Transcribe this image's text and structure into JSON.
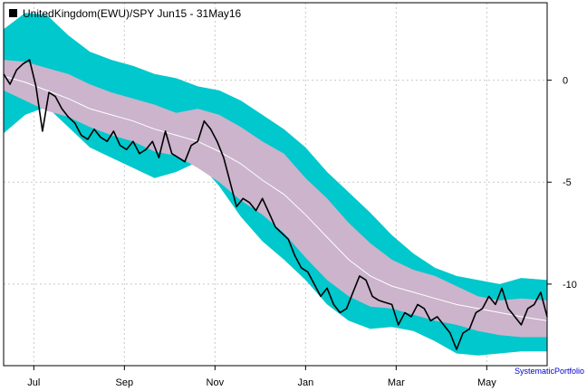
{
  "chart_data": {
    "type": "line",
    "title": "UnitedKingdom(EWU)/SPY Jun15 - 31May16",
    "xlabel": "",
    "ylabel": "",
    "grid": true,
    "legend_position": "top-left",
    "credit": "SystematicPortfolio",
    "ylim": [
      -14,
      3.8
    ],
    "y_ticks": [
      0,
      -5,
      -10
    ],
    "x_ticks": [
      "Jul",
      "Sep",
      "Nov",
      "Jan",
      "Mar",
      "May"
    ],
    "x_tick_index": [
      14,
      56,
      98,
      140,
      182,
      224
    ],
    "n_points": 253,
    "colors": {
      "outer_band": "#00c8cc",
      "inner_band": "#cbb4cc",
      "mid_line": "#ffffff",
      "price_line": "#000000",
      "grid": "#c8c8c8"
    },
    "series": [
      {
        "name": "UnitedKingdom(EWU)/SPY",
        "points": [
          [
            0,
            0.3
          ],
          [
            3,
            -0.2
          ],
          [
            6,
            0.5
          ],
          [
            9,
            0.8
          ],
          [
            12,
            1.0
          ],
          [
            15,
            -0.3
          ],
          [
            18,
            -2.5
          ],
          [
            21,
            -0.6
          ],
          [
            24,
            -0.8
          ],
          [
            27,
            -1.4
          ],
          [
            30,
            -1.8
          ],
          [
            33,
            -2.1
          ],
          [
            36,
            -2.7
          ],
          [
            39,
            -2.9
          ],
          [
            42,
            -2.4
          ],
          [
            45,
            -2.8
          ],
          [
            48,
            -3.0
          ],
          [
            51,
            -2.5
          ],
          [
            54,
            -3.2
          ],
          [
            57,
            -3.4
          ],
          [
            60,
            -3.0
          ],
          [
            63,
            -3.6
          ],
          [
            66,
            -3.4
          ],
          [
            69,
            -3.0
          ],
          [
            72,
            -3.8
          ],
          [
            75,
            -2.5
          ],
          [
            78,
            -3.6
          ],
          [
            81,
            -3.8
          ],
          [
            84,
            -4.0
          ],
          [
            87,
            -3.2
          ],
          [
            90,
            -3.0
          ],
          [
            93,
            -2.0
          ],
          [
            96,
            -2.4
          ],
          [
            99,
            -3.0
          ],
          [
            102,
            -3.8
          ],
          [
            105,
            -5.0
          ],
          [
            108,
            -6.2
          ],
          [
            111,
            -5.8
          ],
          [
            114,
            -6.0
          ],
          [
            117,
            -6.4
          ],
          [
            120,
            -5.8
          ],
          [
            123,
            -6.5
          ],
          [
            126,
            -7.2
          ],
          [
            129,
            -7.5
          ],
          [
            132,
            -7.8
          ],
          [
            135,
            -8.6
          ],
          [
            138,
            -9.2
          ],
          [
            141,
            -9.4
          ],
          [
            144,
            -10.0
          ],
          [
            147,
            -10.6
          ],
          [
            150,
            -10.2
          ],
          [
            153,
            -11.0
          ],
          [
            156,
            -11.4
          ],
          [
            159,
            -11.2
          ],
          [
            162,
            -10.4
          ],
          [
            165,
            -9.6
          ],
          [
            168,
            -9.8
          ],
          [
            171,
            -10.6
          ],
          [
            174,
            -10.8
          ],
          [
            177,
            -10.9
          ],
          [
            180,
            -11.0
          ],
          [
            183,
            -12.0
          ],
          [
            186,
            -11.4
          ],
          [
            189,
            -11.6
          ],
          [
            192,
            -11.0
          ],
          [
            195,
            -11.2
          ],
          [
            198,
            -11.8
          ],
          [
            201,
            -11.6
          ],
          [
            204,
            -12.0
          ],
          [
            207,
            -12.4
          ],
          [
            210,
            -13.2
          ],
          [
            213,
            -12.4
          ],
          [
            216,
            -12.2
          ],
          [
            219,
            -11.4
          ],
          [
            222,
            -11.2
          ],
          [
            225,
            -10.6
          ],
          [
            228,
            -11.0
          ],
          [
            231,
            -10.2
          ],
          [
            234,
            -11.2
          ],
          [
            237,
            -11.6
          ],
          [
            240,
            -12.0
          ],
          [
            243,
            -11.2
          ],
          [
            246,
            -11.0
          ],
          [
            249,
            -10.4
          ],
          [
            252,
            -11.6
          ]
        ]
      },
      {
        "name": "midline",
        "points": [
          [
            0,
            0.2
          ],
          [
            10,
            -0.1
          ],
          [
            20,
            -0.5
          ],
          [
            30,
            -0.9
          ],
          [
            40,
            -1.4
          ],
          [
            50,
            -1.7
          ],
          [
            60,
            -2.0
          ],
          [
            70,
            -2.4
          ],
          [
            80,
            -2.7
          ],
          [
            90,
            -3.0
          ],
          [
            100,
            -3.5
          ],
          [
            110,
            -4.1
          ],
          [
            120,
            -4.9
          ],
          [
            130,
            -5.6
          ],
          [
            140,
            -6.6
          ],
          [
            150,
            -7.7
          ],
          [
            160,
            -8.8
          ],
          [
            170,
            -9.6
          ],
          [
            180,
            -10.1
          ],
          [
            190,
            -10.4
          ],
          [
            200,
            -10.7
          ],
          [
            210,
            -11.0
          ],
          [
            220,
            -11.2
          ],
          [
            230,
            -11.4
          ],
          [
            240,
            -11.6
          ],
          [
            252,
            -11.8
          ]
        ]
      },
      {
        "name": "inner_upper",
        "points": [
          [
            0,
            1.0
          ],
          [
            10,
            0.9
          ],
          [
            20,
            0.6
          ],
          [
            30,
            0.3
          ],
          [
            40,
            -0.2
          ],
          [
            50,
            -0.6
          ],
          [
            60,
            -0.9
          ],
          [
            70,
            -1.2
          ],
          [
            80,
            -1.6
          ],
          [
            90,
            -1.4
          ],
          [
            100,
            -1.7
          ],
          [
            110,
            -2.3
          ],
          [
            120,
            -3.0
          ],
          [
            130,
            -3.6
          ],
          [
            140,
            -4.8
          ],
          [
            150,
            -5.8
          ],
          [
            160,
            -7.0
          ],
          [
            170,
            -8.0
          ],
          [
            180,
            -8.8
          ],
          [
            190,
            -9.3
          ],
          [
            200,
            -9.6
          ],
          [
            210,
            -10.1
          ],
          [
            220,
            -10.6
          ],
          [
            230,
            -10.8
          ],
          [
            240,
            -10.7
          ],
          [
            252,
            -10.8
          ]
        ]
      },
      {
        "name": "inner_lower",
        "points": [
          [
            0,
            -0.5
          ],
          [
            10,
            -1.0
          ],
          [
            20,
            -1.5
          ],
          [
            30,
            -1.8
          ],
          [
            40,
            -2.3
          ],
          [
            50,
            -2.7
          ],
          [
            60,
            -3.0
          ],
          [
            70,
            -3.5
          ],
          [
            80,
            -3.7
          ],
          [
            90,
            -4.3
          ],
          [
            100,
            -5.0
          ],
          [
            110,
            -5.9
          ],
          [
            120,
            -6.6
          ],
          [
            130,
            -7.5
          ],
          [
            140,
            -8.7
          ],
          [
            150,
            -9.8
          ],
          [
            160,
            -10.6
          ],
          [
            170,
            -11.1
          ],
          [
            180,
            -11.2
          ],
          [
            190,
            -11.5
          ],
          [
            200,
            -11.8
          ],
          [
            210,
            -12.0
          ],
          [
            220,
            -12.3
          ],
          [
            230,
            -12.5
          ],
          [
            240,
            -12.6
          ],
          [
            252,
            -12.6
          ]
        ]
      },
      {
        "name": "outer_upper",
        "points": [
          [
            0,
            2.5
          ],
          [
            10,
            3.3
          ],
          [
            20,
            3.2
          ],
          [
            30,
            2.2
          ],
          [
            40,
            1.4
          ],
          [
            50,
            1.0
          ],
          [
            60,
            0.7
          ],
          [
            70,
            0.3
          ],
          [
            80,
            0.1
          ],
          [
            90,
            -0.3
          ],
          [
            100,
            -0.5
          ],
          [
            110,
            -1.0
          ],
          [
            120,
            -1.7
          ],
          [
            130,
            -2.4
          ],
          [
            140,
            -3.3
          ],
          [
            150,
            -4.5
          ],
          [
            160,
            -5.5
          ],
          [
            170,
            -6.5
          ],
          [
            180,
            -7.6
          ],
          [
            190,
            -8.5
          ],
          [
            200,
            -9.2
          ],
          [
            210,
            -9.6
          ],
          [
            220,
            -9.8
          ],
          [
            230,
            -10.0
          ],
          [
            240,
            -9.7
          ],
          [
            252,
            -9.8
          ]
        ]
      },
      {
        "name": "outer_lower",
        "points": [
          [
            0,
            -2.6
          ],
          [
            10,
            -1.7
          ],
          [
            20,
            -1.3
          ],
          [
            30,
            -2.3
          ],
          [
            40,
            -3.3
          ],
          [
            50,
            -3.8
          ],
          [
            60,
            -4.3
          ],
          [
            70,
            -4.8
          ],
          [
            80,
            -4.5
          ],
          [
            90,
            -4.0
          ],
          [
            100,
            -5.2
          ],
          [
            110,
            -6.7
          ],
          [
            120,
            -7.9
          ],
          [
            130,
            -8.8
          ],
          [
            140,
            -9.8
          ],
          [
            150,
            -11.0
          ],
          [
            160,
            -11.8
          ],
          [
            170,
            -12.2
          ],
          [
            180,
            -12.1
          ],
          [
            190,
            -12.3
          ],
          [
            200,
            -12.8
          ],
          [
            210,
            -13.4
          ],
          [
            220,
            -13.5
          ],
          [
            230,
            -13.4
          ],
          [
            240,
            -13.3
          ],
          [
            252,
            -13.3
          ]
        ]
      }
    ]
  }
}
